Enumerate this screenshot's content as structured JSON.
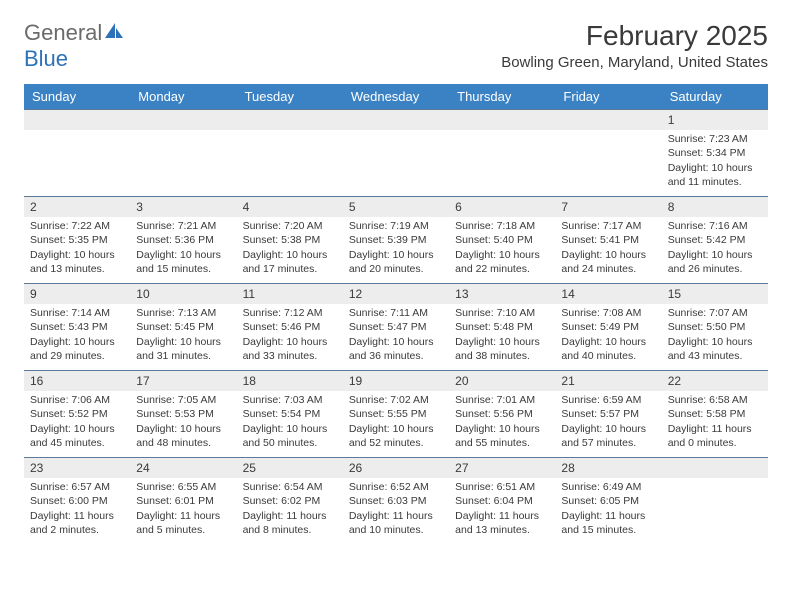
{
  "logo": {
    "text1": "General",
    "text2": "Blue"
  },
  "title": "February 2025",
  "location": "Bowling Green, Maryland, United States",
  "dayNames": [
    "Sunday",
    "Monday",
    "Tuesday",
    "Wednesday",
    "Thursday",
    "Friday",
    "Saturday"
  ],
  "colors": {
    "headerBar": "#3b82c4",
    "rowDivider": "#5a7a9a",
    "dayNumBg": "#ededed",
    "text": "#3a3a3a"
  },
  "weeks": [
    [
      null,
      null,
      null,
      null,
      null,
      null,
      {
        "n": "1",
        "sr": "Sunrise: 7:23 AM",
        "ss": "Sunset: 5:34 PM",
        "d1": "Daylight: 10 hours",
        "d2": "and 11 minutes."
      }
    ],
    [
      {
        "n": "2",
        "sr": "Sunrise: 7:22 AM",
        "ss": "Sunset: 5:35 PM",
        "d1": "Daylight: 10 hours",
        "d2": "and 13 minutes."
      },
      {
        "n": "3",
        "sr": "Sunrise: 7:21 AM",
        "ss": "Sunset: 5:36 PM",
        "d1": "Daylight: 10 hours",
        "d2": "and 15 minutes."
      },
      {
        "n": "4",
        "sr": "Sunrise: 7:20 AM",
        "ss": "Sunset: 5:38 PM",
        "d1": "Daylight: 10 hours",
        "d2": "and 17 minutes."
      },
      {
        "n": "5",
        "sr": "Sunrise: 7:19 AM",
        "ss": "Sunset: 5:39 PM",
        "d1": "Daylight: 10 hours",
        "d2": "and 20 minutes."
      },
      {
        "n": "6",
        "sr": "Sunrise: 7:18 AM",
        "ss": "Sunset: 5:40 PM",
        "d1": "Daylight: 10 hours",
        "d2": "and 22 minutes."
      },
      {
        "n": "7",
        "sr": "Sunrise: 7:17 AM",
        "ss": "Sunset: 5:41 PM",
        "d1": "Daylight: 10 hours",
        "d2": "and 24 minutes."
      },
      {
        "n": "8",
        "sr": "Sunrise: 7:16 AM",
        "ss": "Sunset: 5:42 PM",
        "d1": "Daylight: 10 hours",
        "d2": "and 26 minutes."
      }
    ],
    [
      {
        "n": "9",
        "sr": "Sunrise: 7:14 AM",
        "ss": "Sunset: 5:43 PM",
        "d1": "Daylight: 10 hours",
        "d2": "and 29 minutes."
      },
      {
        "n": "10",
        "sr": "Sunrise: 7:13 AM",
        "ss": "Sunset: 5:45 PM",
        "d1": "Daylight: 10 hours",
        "d2": "and 31 minutes."
      },
      {
        "n": "11",
        "sr": "Sunrise: 7:12 AM",
        "ss": "Sunset: 5:46 PM",
        "d1": "Daylight: 10 hours",
        "d2": "and 33 minutes."
      },
      {
        "n": "12",
        "sr": "Sunrise: 7:11 AM",
        "ss": "Sunset: 5:47 PM",
        "d1": "Daylight: 10 hours",
        "d2": "and 36 minutes."
      },
      {
        "n": "13",
        "sr": "Sunrise: 7:10 AM",
        "ss": "Sunset: 5:48 PM",
        "d1": "Daylight: 10 hours",
        "d2": "and 38 minutes."
      },
      {
        "n": "14",
        "sr": "Sunrise: 7:08 AM",
        "ss": "Sunset: 5:49 PM",
        "d1": "Daylight: 10 hours",
        "d2": "and 40 minutes."
      },
      {
        "n": "15",
        "sr": "Sunrise: 7:07 AM",
        "ss": "Sunset: 5:50 PM",
        "d1": "Daylight: 10 hours",
        "d2": "and 43 minutes."
      }
    ],
    [
      {
        "n": "16",
        "sr": "Sunrise: 7:06 AM",
        "ss": "Sunset: 5:52 PM",
        "d1": "Daylight: 10 hours",
        "d2": "and 45 minutes."
      },
      {
        "n": "17",
        "sr": "Sunrise: 7:05 AM",
        "ss": "Sunset: 5:53 PM",
        "d1": "Daylight: 10 hours",
        "d2": "and 48 minutes."
      },
      {
        "n": "18",
        "sr": "Sunrise: 7:03 AM",
        "ss": "Sunset: 5:54 PM",
        "d1": "Daylight: 10 hours",
        "d2": "and 50 minutes."
      },
      {
        "n": "19",
        "sr": "Sunrise: 7:02 AM",
        "ss": "Sunset: 5:55 PM",
        "d1": "Daylight: 10 hours",
        "d2": "and 52 minutes."
      },
      {
        "n": "20",
        "sr": "Sunrise: 7:01 AM",
        "ss": "Sunset: 5:56 PM",
        "d1": "Daylight: 10 hours",
        "d2": "and 55 minutes."
      },
      {
        "n": "21",
        "sr": "Sunrise: 6:59 AM",
        "ss": "Sunset: 5:57 PM",
        "d1": "Daylight: 10 hours",
        "d2": "and 57 minutes."
      },
      {
        "n": "22",
        "sr": "Sunrise: 6:58 AM",
        "ss": "Sunset: 5:58 PM",
        "d1": "Daylight: 11 hours",
        "d2": "and 0 minutes."
      }
    ],
    [
      {
        "n": "23",
        "sr": "Sunrise: 6:57 AM",
        "ss": "Sunset: 6:00 PM",
        "d1": "Daylight: 11 hours",
        "d2": "and 2 minutes."
      },
      {
        "n": "24",
        "sr": "Sunrise: 6:55 AM",
        "ss": "Sunset: 6:01 PM",
        "d1": "Daylight: 11 hours",
        "d2": "and 5 minutes."
      },
      {
        "n": "25",
        "sr": "Sunrise: 6:54 AM",
        "ss": "Sunset: 6:02 PM",
        "d1": "Daylight: 11 hours",
        "d2": "and 8 minutes."
      },
      {
        "n": "26",
        "sr": "Sunrise: 6:52 AM",
        "ss": "Sunset: 6:03 PM",
        "d1": "Daylight: 11 hours",
        "d2": "and 10 minutes."
      },
      {
        "n": "27",
        "sr": "Sunrise: 6:51 AM",
        "ss": "Sunset: 6:04 PM",
        "d1": "Daylight: 11 hours",
        "d2": "and 13 minutes."
      },
      {
        "n": "28",
        "sr": "Sunrise: 6:49 AM",
        "ss": "Sunset: 6:05 PM",
        "d1": "Daylight: 11 hours",
        "d2": "and 15 minutes."
      },
      null
    ]
  ]
}
